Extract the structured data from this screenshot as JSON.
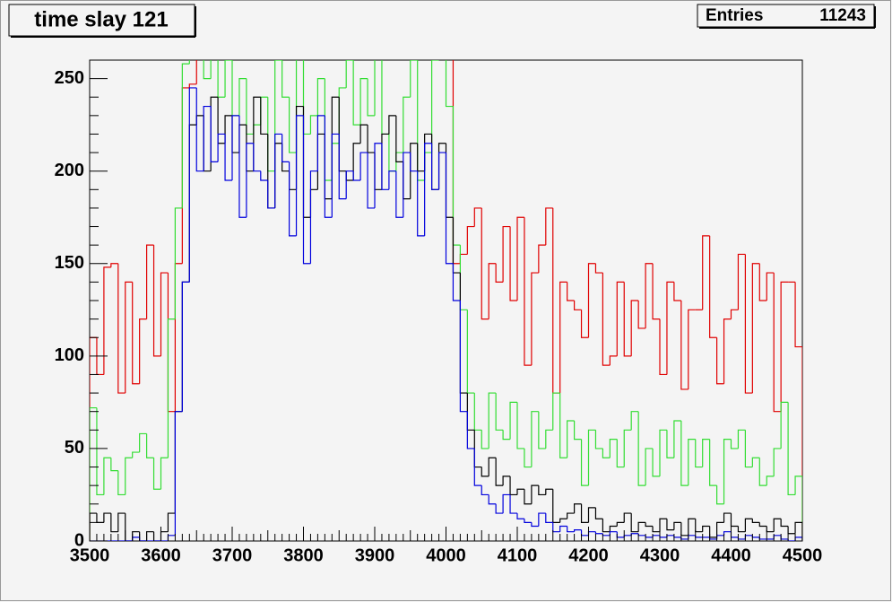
{
  "chart_data": {
    "type": "histogram",
    "title": "time slay 121",
    "stats": {
      "label": "Entries",
      "value": 11243
    },
    "bins": [
      3500,
      3510,
      3520,
      3530,
      3540,
      3550,
      3560,
      3570,
      3580,
      3590,
      3600,
      3610,
      3620,
      3630,
      3640,
      3650,
      3660,
      3670,
      3680,
      3690,
      3700,
      3710,
      3720,
      3730,
      3740,
      3750,
      3760,
      3770,
      3780,
      3790,
      3800,
      3810,
      3820,
      3830,
      3840,
      3850,
      3860,
      3870,
      3880,
      3890,
      3900,
      3910,
      3920,
      3930,
      3940,
      3950,
      3960,
      3970,
      3980,
      3990,
      4000,
      4010,
      4020,
      4030,
      4040,
      4050,
      4060,
      4070,
      4080,
      4090,
      4100,
      4110,
      4120,
      4130,
      4140,
      4150,
      4160,
      4170,
      4180,
      4190,
      4200,
      4210,
      4220,
      4230,
      4240,
      4250,
      4260,
      4270,
      4280,
      4290,
      4300,
      4310,
      4320,
      4330,
      4340,
      4350,
      4360,
      4370,
      4380,
      4390,
      4400,
      4410,
      4420,
      4430,
      4440,
      4450,
      4460,
      4470,
      4480,
      4490,
      4500
    ],
    "series": [
      {
        "color": "#e00000",
        "values": [
          110,
          90,
          148,
          150,
          80,
          140,
          85,
          120,
          160,
          100,
          145,
          70,
          150,
          245,
          247,
          280,
          280,
          280,
          280,
          280,
          280,
          280,
          280,
          280,
          280,
          280,
          280,
          280,
          280,
          280,
          280,
          280,
          280,
          280,
          280,
          280,
          280,
          280,
          280,
          280,
          280,
          280,
          280,
          280,
          280,
          280,
          280,
          280,
          280,
          280,
          280,
          150,
          155,
          170,
          180,
          120,
          150,
          140,
          170,
          130,
          175,
          95,
          145,
          160,
          180,
          80,
          140,
          130,
          125,
          110,
          150,
          145,
          95,
          100,
          140,
          100,
          130,
          115,
          150,
          120,
          90,
          140,
          130,
          82,
          125,
          125,
          165,
          110,
          85,
          120,
          125,
          155,
          80,
          150,
          130,
          145,
          70,
          140,
          140,
          105
        ]
      },
      {
        "color": "#33dd33",
        "values": [
          72,
          25,
          45,
          38,
          25,
          45,
          48,
          58,
          45,
          28,
          45,
          120,
          180,
          258,
          270,
          275,
          250,
          270,
          240,
          260,
          230,
          250,
          220,
          225,
          240,
          200,
          260,
          240,
          210,
          270,
          220,
          230,
          250,
          195,
          215,
          245,
          260,
          225,
          250,
          230,
          270,
          220,
          200,
          210,
          240,
          260,
          195,
          210,
          260,
          270,
          235,
          160,
          125,
          80,
          60,
          50,
          80,
          60,
          55,
          75,
          50,
          40,
          70,
          50,
          60,
          80,
          45,
          65,
          55,
          30,
          60,
          50,
          45,
          55,
          40,
          60,
          70,
          30,
          50,
          35,
          60,
          45,
          65,
          30,
          55,
          40,
          55,
          30,
          20,
          55,
          50,
          60,
          40,
          45,
          30,
          35,
          50,
          75,
          25,
          35
        ]
      },
      {
        "color": "#000000",
        "values": [
          15,
          10,
          15,
          5,
          15,
          0,
          5,
          0,
          5,
          0,
          5,
          15,
          70,
          140,
          225,
          230,
          200,
          240,
          215,
          230,
          210,
          225,
          200,
          240,
          220,
          180,
          215,
          200,
          190,
          235,
          175,
          190,
          220,
          185,
          240,
          200,
          195,
          215,
          225,
          210,
          190,
          220,
          230,
          205,
          185,
          215,
          200,
          220,
          190,
          215,
          175,
          145,
          80,
          60,
          40,
          35,
          45,
          30,
          35,
          25,
          28,
          20,
          30,
          25,
          28,
          10,
          12,
          15,
          20,
          10,
          18,
          12,
          5,
          8,
          10,
          15,
          5,
          10,
          8,
          5,
          12,
          6,
          10,
          3,
          12,
          5,
          8,
          2,
          10,
          15,
          8,
          5,
          12,
          10,
          8,
          5,
          12,
          8,
          4,
          10
        ]
      },
      {
        "color": "#0000dd",
        "values": [
          0,
          0,
          0,
          0,
          0,
          0,
          2,
          0,
          0,
          0,
          0,
          3,
          70,
          140,
          245,
          200,
          235,
          205,
          220,
          195,
          230,
          175,
          215,
          200,
          195,
          180,
          220,
          205,
          165,
          230,
          150,
          200,
          230,
          175,
          220,
          185,
          200,
          195,
          210,
          180,
          215,
          190,
          200,
          175,
          210,
          200,
          165,
          215,
          190,
          210,
          150,
          130,
          70,
          50,
          30,
          25,
          20,
          15,
          25,
          15,
          12,
          10,
          8,
          15,
          10,
          5,
          8,
          5,
          6,
          3,
          5,
          4,
          3,
          5,
          2,
          3,
          4,
          3,
          2,
          3,
          2,
          3,
          2,
          1,
          3,
          2,
          2,
          1,
          3,
          5,
          2,
          1,
          3,
          2,
          1,
          1,
          3,
          1,
          0,
          2
        ]
      }
    ],
    "xlim": [
      3500,
      4500
    ],
    "xticks": [
      3500,
      3600,
      3700,
      3800,
      3900,
      4000,
      4100,
      4200,
      4300,
      4400,
      4500
    ],
    "ylim": [
      0,
      260
    ],
    "yticks": [
      0,
      50,
      100,
      150,
      200,
      250
    ]
  }
}
